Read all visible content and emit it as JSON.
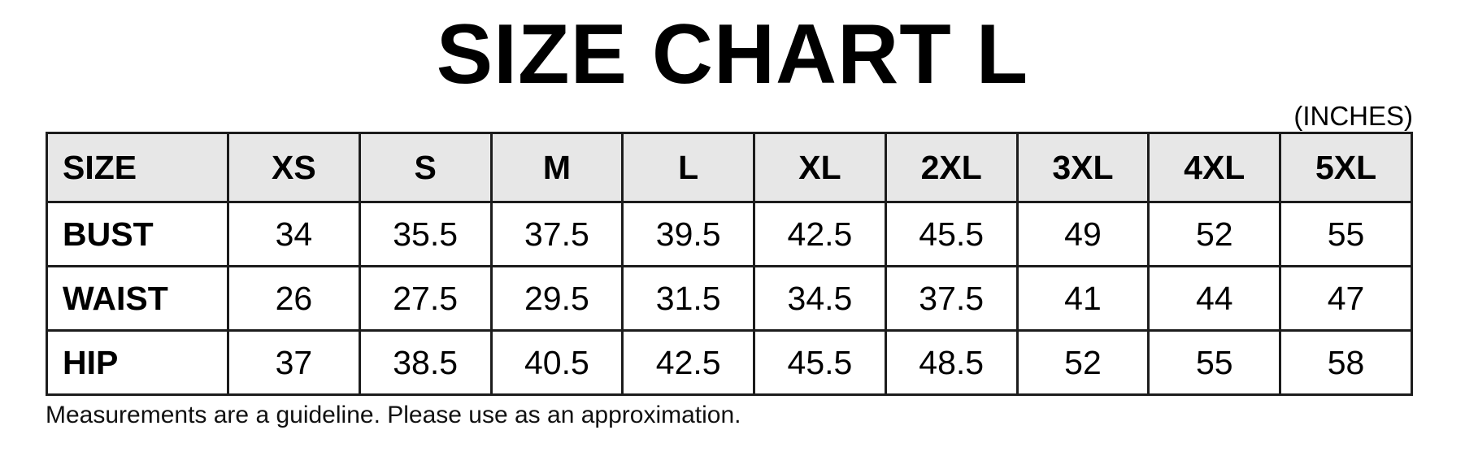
{
  "title": "SIZE CHART L",
  "units_label": "(INCHES)",
  "footnote": "Measurements are a guideline. Please use as an approximation.",
  "colors": {
    "header_bg": "#e7e7e7",
    "border": "#1c1c1c",
    "text": "#000000",
    "background": "#ffffff"
  },
  "chart_data": {
    "type": "table",
    "title": "SIZE CHART L",
    "units": "INCHES",
    "columns": [
      "SIZE",
      "XS",
      "S",
      "M",
      "L",
      "XL",
      "2XL",
      "3XL",
      "4XL",
      "5XL"
    ],
    "rows": [
      {
        "label": "BUST",
        "values": [
          "34",
          "35.5",
          "37.5",
          "39.5",
          "42.5",
          "45.5",
          "49",
          "52",
          "55"
        ]
      },
      {
        "label": "WAIST",
        "values": [
          "26",
          "27.5",
          "29.5",
          "31.5",
          "34.5",
          "37.5",
          "41",
          "44",
          "47"
        ]
      },
      {
        "label": "HIP",
        "values": [
          "37",
          "38.5",
          "40.5",
          "42.5",
          "45.5",
          "48.5",
          "52",
          "55",
          "58"
        ]
      }
    ],
    "layout": {
      "header_row_shaded": true,
      "first_column_wider": true,
      "grid": "full black borders"
    }
  }
}
